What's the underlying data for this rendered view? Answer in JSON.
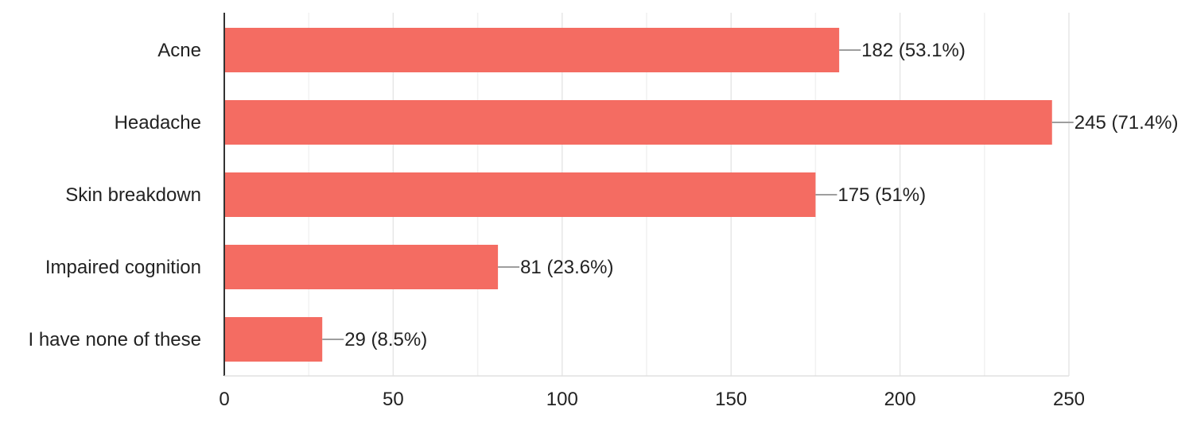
{
  "chart_data": {
    "type": "bar",
    "orientation": "horizontal",
    "categories": [
      "Acne",
      "Headache",
      "Skin breakdown",
      "Impaired cognition",
      "I have none of these"
    ],
    "values": [
      182,
      245,
      175,
      81,
      29
    ],
    "value_labels": [
      "182 (53.1%)",
      "245 (71.4%)",
      "175 (51%)",
      "81 (23.6%)",
      "29 (8.5%)"
    ],
    "xlim": [
      0,
      250
    ],
    "xticks": [
      0,
      50,
      100,
      150,
      200,
      250
    ],
    "grid": true,
    "legend": "none",
    "bar_color": "#f46c62",
    "title": "",
    "xlabel": "",
    "ylabel": ""
  }
}
